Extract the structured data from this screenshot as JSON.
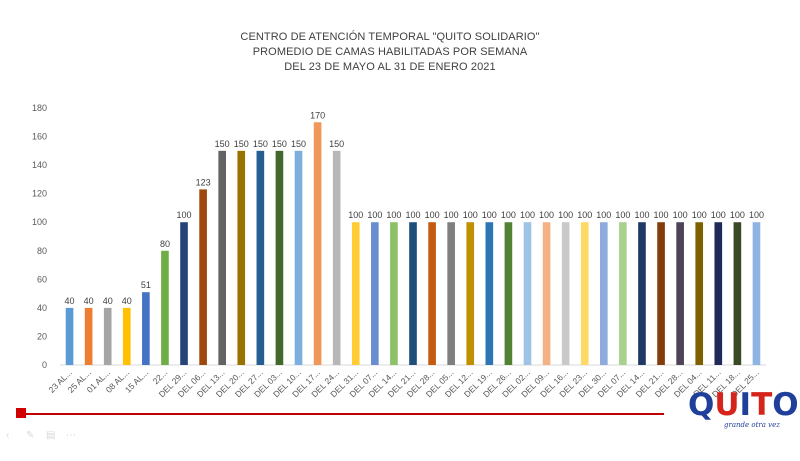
{
  "titles": {
    "line1": "CENTRO DE ATENCIÓN TEMPORAL \"QUITO SOLIDARIO\"",
    "line2": "PROMEDIO DE CAMAS HABILITADAS POR SEMANA",
    "line3": "DEL 23 DE MAYO AL 31 DE ENERO 2021"
  },
  "logo": {
    "word": "QUITO",
    "tagline": "grande otra vez",
    "colors": {
      "blue": "#1f3f9a",
      "red": "#d4241b"
    }
  },
  "toolbar": {
    "icons": [
      "arrow-left-icon",
      "pen-icon",
      "slides-icon",
      "more-icon"
    ]
  },
  "chart_data": {
    "type": "bar",
    "title": "",
    "xlabel": "",
    "ylabel": "",
    "ylim": [
      0,
      180
    ],
    "yticks": [
      0,
      20,
      40,
      60,
      80,
      100,
      120,
      140,
      160,
      180
    ],
    "grid": false,
    "legend": "none",
    "categories": [
      "23 AL...",
      "25 AL...",
      "01 AL...",
      "08 AL...",
      "15 AL...",
      "22...",
      "DEL 29...",
      "DEL 06...",
      "DEL 13...",
      "DEL 20...",
      "DEL 27...",
      "DEL 03...",
      "DEL 10...",
      "DEL 17...",
      "DEL 24...",
      "DEL 31...",
      "DEL 07...",
      "DEL 14...",
      "DEL 21...",
      "DEL 28...",
      "DEL 05...",
      "DEL 12...",
      "DEL 19...",
      "DEL 26...",
      "DEL 02...",
      "DEL 09...",
      "DEL 16...",
      "DEL 23...",
      "DEL 30...",
      "DEL 07...",
      "DEL 14...",
      "DEL 21...",
      "DEL 28...",
      "DEL 04...",
      "DEL 11...",
      "DEL 18...",
      "DEL 25..."
    ],
    "values": [
      40,
      40,
      40,
      40,
      51,
      80,
      100,
      123,
      150,
      150,
      150,
      150,
      150,
      170,
      150,
      100,
      100,
      100,
      100,
      100,
      100,
      100,
      100,
      100,
      100,
      100,
      100,
      100,
      100,
      100,
      100,
      100,
      100,
      100,
      100,
      100,
      100
    ],
    "colors": [
      "#5b9bd5",
      "#ed7d31",
      "#a5a5a5",
      "#ffc000",
      "#4472c4",
      "#70ad47",
      "#264478",
      "#9e480e",
      "#636363",
      "#997300",
      "#255e91",
      "#43682b",
      "#7cafdd",
      "#f1975a",
      "#b7b7b7",
      "#ffcd33",
      "#698ed0",
      "#8cc168",
      "#1f4e79",
      "#c55a11",
      "#7f7f7f",
      "#bf9000",
      "#2e75b6",
      "#548235",
      "#9dc3e6",
      "#f4b183",
      "#c9c9c9",
      "#ffd966",
      "#8faadc",
      "#a9d18e",
      "#203864",
      "#843c0c",
      "#4f4357",
      "#7f6000",
      "#1e2a5a",
      "#3b4a26",
      "#8eb4e3"
    ]
  }
}
